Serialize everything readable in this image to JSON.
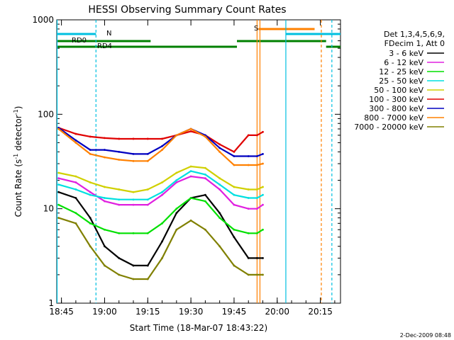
{
  "chart_data": {
    "type": "line",
    "title": "HESSI Observing Summary Count Rates",
    "xlabel": "Start Time (18-Mar-07 18:43:22)",
    "ylabel_main": "Count Rate (s",
    "ylabel_sup1": "-1",
    "ylabel_mid": " detector",
    "ylabel_sup2": "-1",
    "ylabel_end": ")",
    "yscale": "log",
    "ylim": [
      1,
      1000
    ],
    "xlim": [
      "18:43:22",
      "20:22:00"
    ],
    "x_ticks": [
      "18:45",
      "19:00",
      "19:15",
      "19:30",
      "19:45",
      "20:00",
      "20:15"
    ],
    "y_ticks": [
      "1",
      "10",
      "100",
      "1000"
    ],
    "legend_header": [
      "Det 1,3,4,5,6,9,",
      "FDecim 1, Att 0"
    ],
    "timestamp": "2-Dec-2009 08:48",
    "flags": [
      {
        "label": "RD0",
        "color": "#008000"
      },
      {
        "label": "RD4",
        "color": "#008000"
      },
      {
        "label": "N",
        "color": "#00c0e0"
      },
      {
        "label": "S",
        "color": "#ff8000"
      }
    ],
    "x": [
      "18:44",
      "18:50",
      "18:55",
      "19:00",
      "19:05",
      "19:10",
      "19:15",
      "19:20",
      "19:25",
      "19:30",
      "19:35",
      "19:40",
      "19:45",
      "19:50",
      "19:53",
      "19:55"
    ],
    "series": [
      {
        "name": "3 - 6 keV",
        "color": "#000000",
        "values": [
          15,
          13,
          8,
          4,
          3,
          2.5,
          2.5,
          4.5,
          9,
          13,
          14,
          9,
          5,
          3,
          3,
          3
        ]
      },
      {
        "name": "6 - 12 keV",
        "color": "#e020e0",
        "values": [
          21,
          19,
          15,
          12,
          11,
          11,
          11,
          14,
          19,
          22,
          21,
          16,
          11,
          10,
          10,
          11
        ]
      },
      {
        "name": "12 - 25 keV",
        "color": "#00e000",
        "values": [
          11,
          9,
          7,
          6,
          5.5,
          5.5,
          5.5,
          7,
          10,
          13,
          12,
          8,
          6,
          5.5,
          5.5,
          6
        ]
      },
      {
        "name": "25 - 50 keV",
        "color": "#00e0e0",
        "values": [
          18,
          16,
          14,
          13,
          12.5,
          12.5,
          12.5,
          15,
          20,
          25,
          23,
          18,
          14,
          13,
          13,
          14
        ]
      },
      {
        "name": "50 - 100 keV",
        "color": "#d0d000",
        "values": [
          24,
          22,
          19,
          17,
          16,
          15,
          16,
          19,
          24,
          28,
          27,
          21,
          17,
          16,
          16,
          17
        ]
      },
      {
        "name": "100 - 300 keV",
        "color": "#e00000",
        "values": [
          72,
          62,
          58,
          56,
          55,
          55,
          55,
          55,
          60,
          66,
          60,
          48,
          40,
          60,
          60,
          65
        ]
      },
      {
        "name": "300 - 800 keV",
        "color": "#0000c0",
        "values": [
          72,
          53,
          42,
          42,
          40,
          38,
          38,
          46,
          60,
          70,
          60,
          44,
          36,
          36,
          36,
          38
        ]
      },
      {
        "name": "800 - 7000 keV",
        "color": "#ff8000",
        "values": [
          70,
          50,
          38,
          35,
          33,
          32,
          32,
          42,
          60,
          70,
          58,
          40,
          29,
          29,
          29,
          30
        ]
      },
      {
        "name": "7000 - 20000 keV",
        "color": "#808000",
        "values": [
          8,
          7,
          4,
          2.5,
          2,
          1.8,
          1.8,
          3,
          6,
          7.5,
          6,
          4,
          2.5,
          2,
          2,
          2
        ]
      }
    ]
  }
}
